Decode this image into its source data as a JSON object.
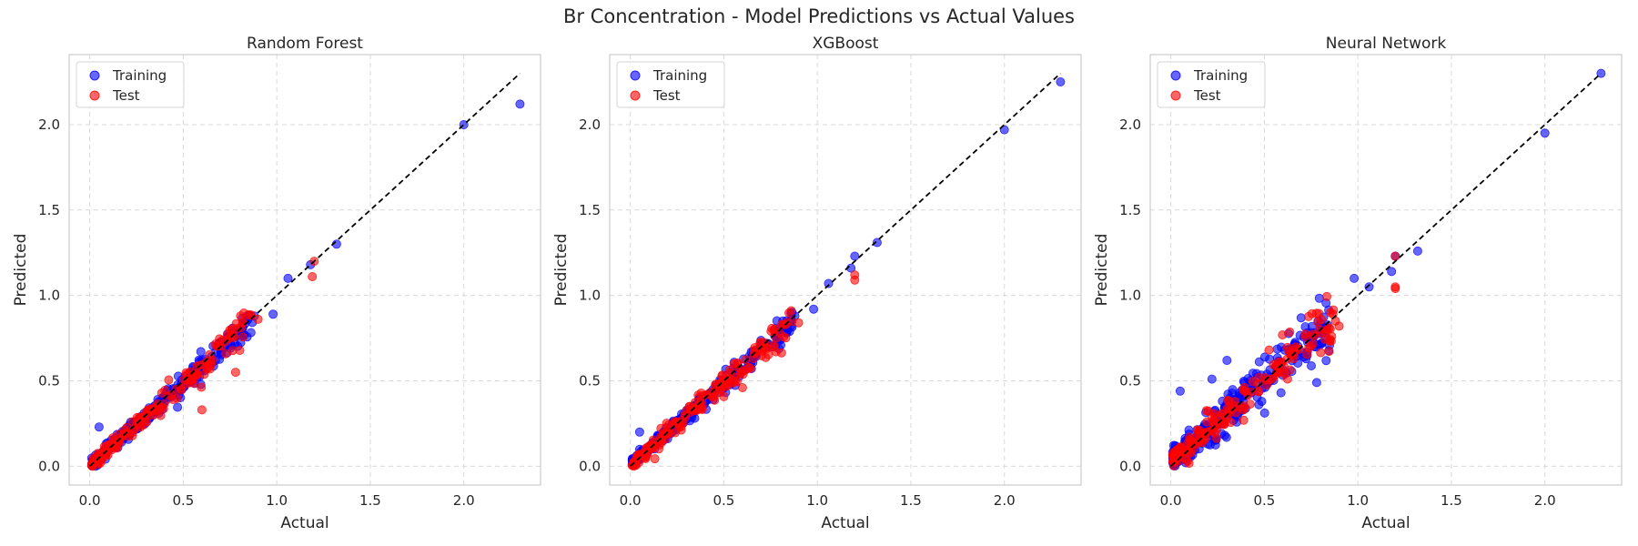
{
  "figure": {
    "title": "Br Concentration - Model Predictions vs Actual Values"
  },
  "colors": {
    "training": "#0000ff",
    "test": "#ff0000",
    "diagonal": "#000000",
    "grid": "#d9d9d9",
    "frame": "#cccccc"
  },
  "chart_data": [
    {
      "type": "scatter",
      "title": "Random Forest",
      "xlabel": "Actual",
      "ylabel": "Predicted",
      "xlim": [
        -0.11,
        2.41
      ],
      "ylim": [
        -0.11,
        2.41
      ],
      "xticks": [
        0.0,
        0.5,
        1.0,
        1.5,
        2.0
      ],
      "xtick_labels": [
        "0.0",
        "0.5",
        "1.0",
        "1.5",
        "2.0"
      ],
      "yticks": [
        0.0,
        0.5,
        1.0,
        1.5,
        2.0
      ],
      "ytick_labels": [
        "0.0",
        "0.5",
        "1.0",
        "1.5",
        "2.0"
      ],
      "grid": true,
      "legend": {
        "position": "top-left",
        "entries": [
          "Training",
          "Test"
        ]
      },
      "reference_line": {
        "x": [
          0.0,
          2.3
        ],
        "y": [
          0.0,
          2.3
        ],
        "style": "dashed"
      },
      "series": [
        {
          "name": "Training",
          "seed": 11,
          "noise": 0.025,
          "bias": 0.0,
          "count": 260,
          "points": [
            [
              2.3,
              2.12
            ],
            [
              2.0,
              2.0
            ],
            [
              1.32,
              1.3
            ],
            [
              1.18,
              1.18
            ],
            [
              1.06,
              1.1
            ],
            [
              0.98,
              0.89
            ],
            [
              0.88,
              0.88
            ],
            [
              0.85,
              0.87
            ],
            [
              0.05,
              0.23
            ],
            [
              0.8,
              0.8
            ]
          ]
        },
        {
          "name": "Test",
          "seed": 23,
          "noise": 0.03,
          "bias": 0.0,
          "count": 170,
          "points": [
            [
              1.2,
              1.2
            ],
            [
              1.19,
              1.11
            ],
            [
              0.78,
              0.55
            ],
            [
              0.6,
              0.33
            ],
            [
              0.9,
              0.86
            ]
          ]
        }
      ]
    },
    {
      "type": "scatter",
      "title": "XGBoost",
      "xlabel": "Actual",
      "ylabel": "Predicted",
      "xlim": [
        -0.11,
        2.41
      ],
      "ylim": [
        -0.11,
        2.41
      ],
      "xticks": [
        0.0,
        0.5,
        1.0,
        1.5,
        2.0
      ],
      "xtick_labels": [
        "0.0",
        "0.5",
        "1.0",
        "1.5",
        "2.0"
      ],
      "yticks": [
        0.0,
        0.5,
        1.0,
        1.5,
        2.0
      ],
      "ytick_labels": [
        "0.0",
        "0.5",
        "1.0",
        "1.5",
        "2.0"
      ],
      "grid": true,
      "legend": {
        "position": "top-left",
        "entries": [
          "Training",
          "Test"
        ]
      },
      "reference_line": {
        "x": [
          0.0,
          2.3
        ],
        "y": [
          0.0,
          2.3
        ],
        "style": "dashed"
      },
      "series": [
        {
          "name": "Training",
          "seed": 37,
          "noise": 0.022,
          "bias": 0.01,
          "count": 260,
          "points": [
            [
              2.3,
              2.25
            ],
            [
              2.0,
              1.97
            ],
            [
              1.32,
              1.31
            ],
            [
              1.2,
              1.23
            ],
            [
              1.18,
              1.16
            ],
            [
              1.06,
              1.07
            ],
            [
              0.98,
              0.92
            ],
            [
              0.88,
              0.88
            ],
            [
              0.05,
              0.2
            ]
          ]
        },
        {
          "name": "Test",
          "seed": 41,
          "noise": 0.03,
          "bias": 0.0,
          "count": 170,
          "points": [
            [
              1.2,
              1.12
            ],
            [
              1.2,
              1.09
            ],
            [
              0.78,
              0.67
            ],
            [
              0.9,
              0.84
            ],
            [
              0.6,
              0.46
            ]
          ]
        }
      ]
    },
    {
      "type": "scatter",
      "title": "Neural Network",
      "xlabel": "Actual",
      "ylabel": "Predicted",
      "xlim": [
        -0.11,
        2.41
      ],
      "ylim": [
        -0.11,
        2.41
      ],
      "xticks": [
        0.0,
        0.5,
        1.0,
        1.5,
        2.0
      ],
      "xtick_labels": [
        "0.0",
        "0.5",
        "1.0",
        "1.5",
        "2.0"
      ],
      "yticks": [
        0.0,
        0.5,
        1.0,
        1.5,
        2.0
      ],
      "ytick_labels": [
        "0.0",
        "0.5",
        "1.0",
        "1.5",
        "2.0"
      ],
      "grid": true,
      "legend": {
        "position": "top-left",
        "entries": [
          "Training",
          "Test"
        ]
      },
      "reference_line": {
        "x": [
          0.0,
          2.3
        ],
        "y": [
          0.0,
          2.3
        ],
        "style": "dashed"
      },
      "series": [
        {
          "name": "Training",
          "seed": 53,
          "noise": 0.055,
          "bias": 0.03,
          "count": 280,
          "points": [
            [
              2.3,
              2.3
            ],
            [
              2.0,
              1.95
            ],
            [
              1.32,
              1.26
            ],
            [
              1.2,
              1.23
            ],
            [
              1.18,
              1.14
            ],
            [
              1.06,
              1.05
            ],
            [
              0.98,
              1.1
            ],
            [
              0.78,
              0.49
            ],
            [
              0.05,
              0.44
            ],
            [
              0.3,
              0.62
            ],
            [
              0.22,
              0.51
            ]
          ]
        },
        {
          "name": "Test",
          "seed": 67,
          "noise": 0.05,
          "bias": 0.03,
          "count": 180,
          "points": [
            [
              1.2,
              1.23
            ],
            [
              1.2,
              1.05
            ],
            [
              1.2,
              1.04
            ],
            [
              0.9,
              0.82
            ],
            [
              0.88,
              0.85
            ]
          ]
        }
      ]
    }
  ]
}
